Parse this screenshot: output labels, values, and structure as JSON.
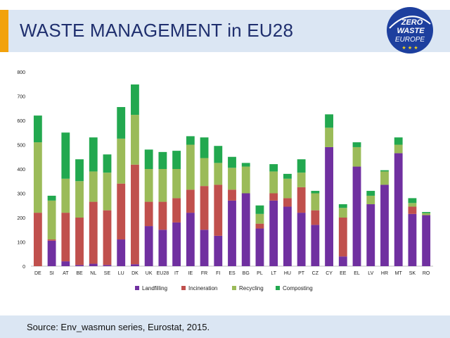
{
  "title": "WASTE MANAGEMENT in EU28",
  "logo": {
    "line1": "ZERO",
    "line2": "WASTE",
    "line3": "EUROPE"
  },
  "source": "Source: Env_wasmun series, Eurostat, 2015.",
  "colors": {
    "Landfilling": "#7030a0",
    "Incineration": "#c0504d",
    "Recycling": "#9bbb59",
    "Composting": "#22a84f"
  },
  "chart_data": {
    "type": "bar",
    "stacked": true,
    "title": "",
    "xlabel": "",
    "ylabel": "",
    "ylim": [
      0,
      800
    ],
    "yticks": [
      0,
      100,
      200,
      300,
      400,
      500,
      600,
      700,
      800
    ],
    "grid": false,
    "legend_position": "bottom",
    "categories": [
      "DE",
      "SI",
      "AT",
      "BE",
      "NL",
      "SE",
      "LU",
      "DK",
      "UK",
      "EU28",
      "IT",
      "IE",
      "FR",
      "FI",
      "ES",
      "BG",
      "PL",
      "LT",
      "HU",
      "PT",
      "CZ",
      "CY",
      "EE",
      "EL",
      "LV",
      "HR",
      "MT",
      "SK",
      "RO"
    ],
    "series": [
      {
        "name": "Landfilling",
        "values": [
          0,
          105,
          20,
          5,
          10,
          5,
          110,
          8,
          165,
          150,
          180,
          220,
          150,
          125,
          270,
          300,
          155,
          270,
          245,
          220,
          170,
          490,
          40,
          410,
          255,
          335,
          465,
          215,
          210
        ]
      },
      {
        "name": "Incineration",
        "values": [
          220,
          5,
          200,
          195,
          255,
          225,
          230,
          410,
          100,
          115,
          100,
          95,
          180,
          210,
          45,
          0,
          20,
          30,
          35,
          105,
          60,
          0,
          160,
          0,
          0,
          0,
          0,
          30,
          0
        ]
      },
      {
        "name": "Recycling",
        "values": [
          290,
          160,
          140,
          150,
          125,
          155,
          185,
          205,
          135,
          135,
          120,
          185,
          115,
          90,
          90,
          110,
          40,
          90,
          80,
          60,
          70,
          80,
          40,
          80,
          35,
          55,
          35,
          15,
          8
        ]
      },
      {
        "name": "Composting",
        "values": [
          110,
          20,
          190,
          90,
          140,
          75,
          130,
          125,
          80,
          70,
          75,
          35,
          85,
          70,
          45,
          15,
          35,
          30,
          20,
          55,
          10,
          55,
          15,
          20,
          20,
          5,
          30,
          20,
          5
        ]
      }
    ]
  }
}
